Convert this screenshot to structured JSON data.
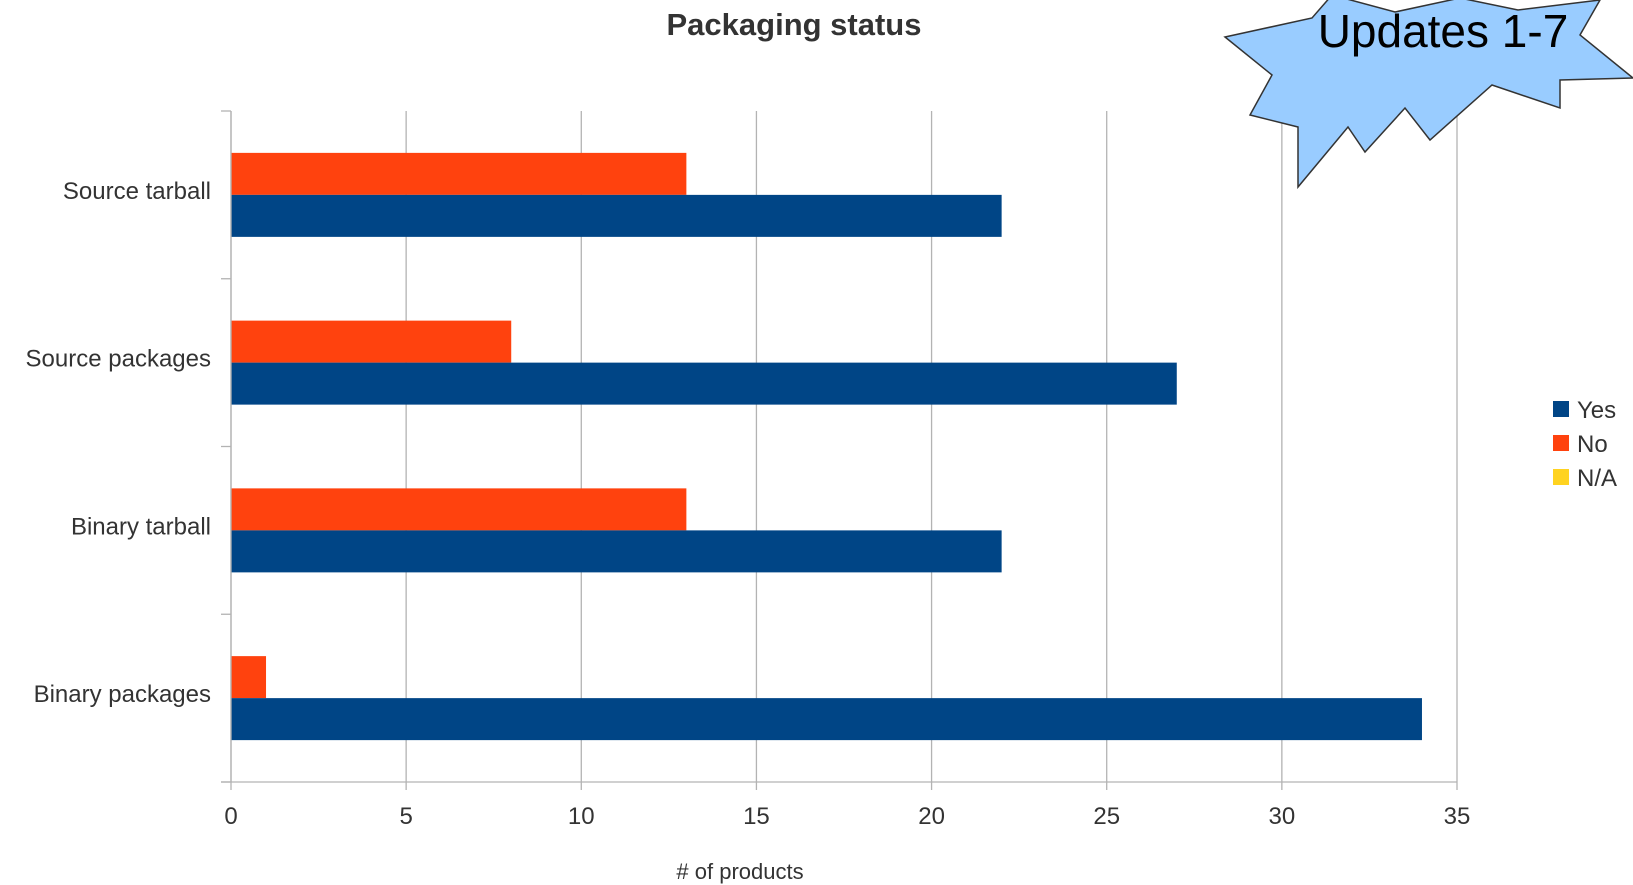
{
  "chart_data": {
    "type": "bar",
    "orientation": "horizontal",
    "title": "Packaging status",
    "xlabel": "# of products",
    "ylabel": "",
    "xlim": [
      0,
      35
    ],
    "xticks": [
      0,
      5,
      10,
      15,
      20,
      25,
      30,
      35
    ],
    "grid": "vertical",
    "legend_position": "right",
    "categories": [
      "Source tarball",
      "Source packages",
      "Binary tarball",
      "Binary packages"
    ],
    "series": [
      {
        "name": "Yes",
        "color": "#004586",
        "values": [
          22,
          27,
          22,
          34
        ]
      },
      {
        "name": "No",
        "color": "#ff420e",
        "values": [
          13,
          8,
          13,
          1
        ]
      },
      {
        "name": "N/A",
        "color": "#ffd320",
        "values": [
          0,
          0,
          0,
          0
        ]
      }
    ]
  },
  "badge": {
    "text": "Updates 1-7",
    "shape": "starburst",
    "fill": "#99ccff"
  }
}
